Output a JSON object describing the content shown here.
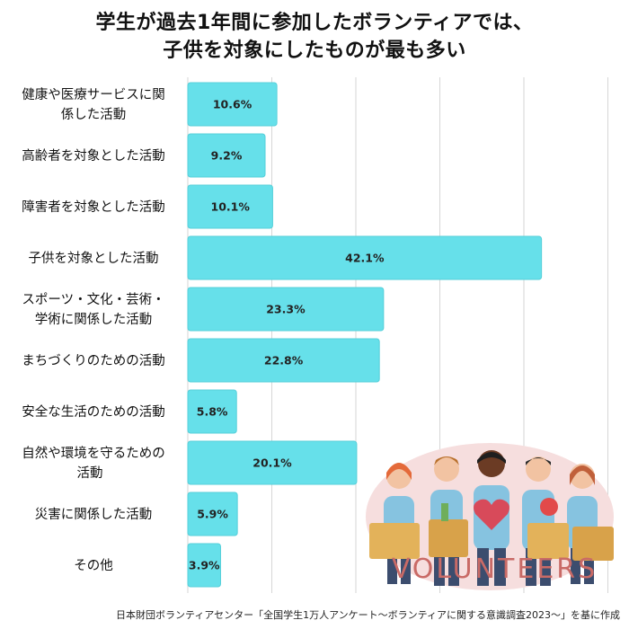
{
  "title_lines": [
    "学生が過去1年間に参加したボランティアでは、",
    "子供を対象にしたものが最も多い"
  ],
  "illustration_text": "VOLUNTEERS",
  "source": "日本財団ボランティアセンター「全国学生1万人アンケート～ボランティアに関する意識調査2023～」を基に作成",
  "colors": {
    "bar": "#66e0ea",
    "bar_edge": "#55cfd9",
    "grid": "#d6d6d6",
    "text": "#111111",
    "volunteers": "#c96a66"
  },
  "chart_data": {
    "type": "bar",
    "orientation": "horizontal",
    "categories": [
      [
        "健康や医療サービスに関",
        "係した活動"
      ],
      [
        "高齢者を対象とした活動"
      ],
      [
        "障害者を対象とした活動"
      ],
      [
        "子供を対象とした活動"
      ],
      [
        "スポーツ・文化・芸術・",
        "学術に関係した活動"
      ],
      [
        "まちづくりのための活動"
      ],
      [
        "安全な生活のための活動"
      ],
      [
        "自然や環境を守るための",
        "活動"
      ],
      [
        "災害に関係した活動"
      ],
      [
        "その他"
      ]
    ],
    "values": [
      10.6,
      9.2,
      10.1,
      42.1,
      23.3,
      22.8,
      5.8,
      20.1,
      5.9,
      3.9
    ],
    "value_labels": [
      "10.6%",
      "9.2%",
      "10.1%",
      "42.1%",
      "23.3%",
      "22.8%",
      "5.8%",
      "20.1%",
      "5.9%",
      "3.9%"
    ],
    "xlim": [
      0,
      50
    ],
    "grid": true
  }
}
